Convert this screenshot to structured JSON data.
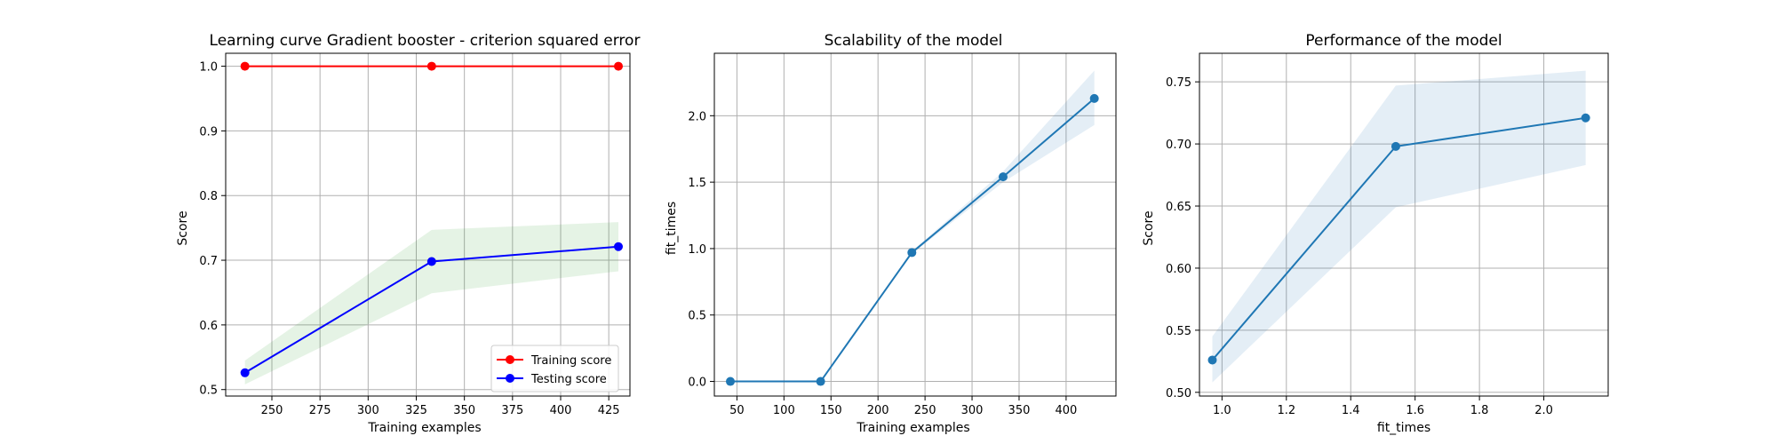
{
  "chart_data": [
    {
      "type": "line",
      "title": "Learning curve Gradient booster - criterion squared error",
      "xlabel": "Training examples",
      "ylabel": "Score",
      "xlim": [
        226,
        436
      ],
      "ylim": [
        0.49,
        1.02
      ],
      "xticks": [
        250,
        275,
        300,
        325,
        350,
        375,
        400,
        425
      ],
      "yticks": [
        0.5,
        0.6,
        0.7,
        0.8,
        0.9,
        1.0
      ],
      "ytick_labels": [
        "0.5",
        "0.6",
        "0.7",
        "0.8",
        "0.9",
        "1.0"
      ],
      "grid": true,
      "legend": "lower right",
      "series": [
        {
          "name": "Training score",
          "color": "#ff0000",
          "x": [
            236,
            333,
            430
          ],
          "y": [
            1.0,
            1.0,
            1.0
          ],
          "band_low": [
            1.0,
            1.0,
            1.0
          ],
          "band_high": [
            1.0,
            1.0,
            1.0
          ]
        },
        {
          "name": "Testing score",
          "color": "#0000ff",
          "band_color": "#2ca02c",
          "x": [
            236,
            333,
            430
          ],
          "y": [
            0.526,
            0.698,
            0.721
          ],
          "band_low": [
            0.508,
            0.649,
            0.683
          ],
          "band_high": [
            0.545,
            0.747,
            0.759
          ]
        }
      ]
    },
    {
      "type": "line",
      "title": "Scalability of the model",
      "xlabel": "Training examples",
      "ylabel": "fit_times",
      "xlim": [
        26,
        453
      ],
      "ylim": [
        -0.11,
        2.47
      ],
      "xticks": [
        50,
        100,
        150,
        200,
        250,
        300,
        350,
        400
      ],
      "yticks": [
        0.0,
        0.5,
        1.0,
        1.5,
        2.0
      ],
      "ytick_labels": [
        "0.0",
        "0.5",
        "1.0",
        "1.5",
        "2.0"
      ],
      "grid": true,
      "series": [
        {
          "color": "#1f77b4",
          "x": [
            43,
            139,
            236,
            333,
            430
          ],
          "y": [
            0.0,
            0.0,
            0.97,
            1.54,
            2.13
          ],
          "band_low": [
            0.0,
            0.0,
            0.96,
            1.5,
            1.93
          ],
          "band_high": [
            0.0,
            0.0,
            0.98,
            1.58,
            2.34
          ]
        }
      ]
    },
    {
      "type": "line",
      "title": "Performance of the model",
      "xlabel": "fit_times",
      "ylabel": "Score",
      "xlim": [
        0.93,
        2.2
      ],
      "ylim": [
        0.497,
        0.773
      ],
      "xticks": [
        1.0,
        1.2,
        1.4,
        1.6,
        1.8,
        2.0
      ],
      "xtick_labels": [
        "1.0",
        "1.2",
        "1.4",
        "1.6",
        "1.8",
        "2.0"
      ],
      "yticks": [
        0.5,
        0.55,
        0.6,
        0.65,
        0.7,
        0.75
      ],
      "ytick_labels": [
        "0.50",
        "0.55",
        "0.60",
        "0.65",
        "0.70",
        "0.75"
      ],
      "grid": true,
      "series": [
        {
          "color": "#1f77b4",
          "x": [
            0.97,
            1.54,
            2.13
          ],
          "y": [
            0.526,
            0.698,
            0.721
          ],
          "band_low": [
            0.508,
            0.649,
            0.683
          ],
          "band_high": [
            0.545,
            0.747,
            0.759
          ]
        }
      ]
    }
  ]
}
